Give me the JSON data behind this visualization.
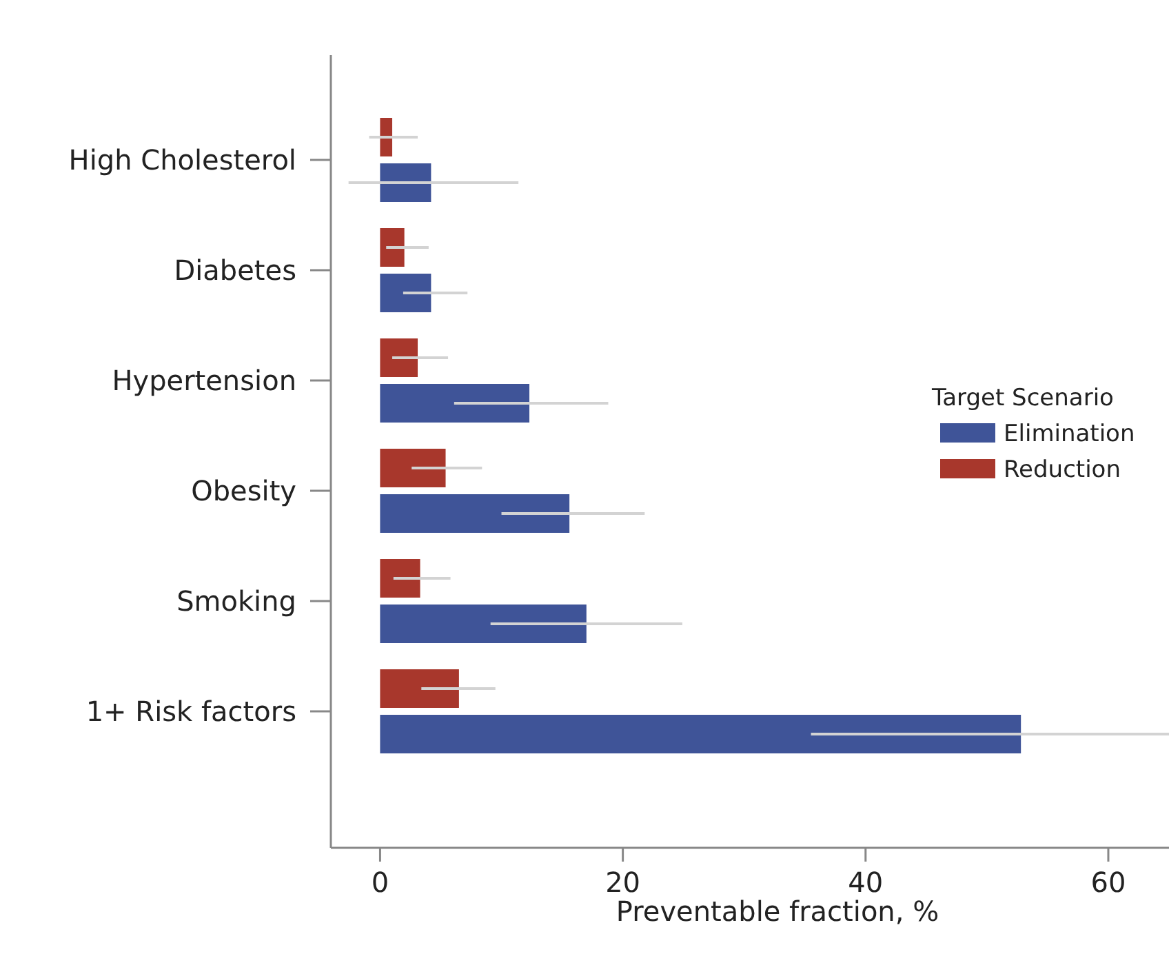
{
  "chart_data": {
    "type": "bar",
    "orientation": "horizontal",
    "xlabel": "Preventable fraction, %",
    "legend_title": "Target Scenario",
    "legend": "right",
    "categories": [
      "High Cholesterol",
      "Diabetes",
      "Hypertension",
      "Obesity",
      "Smoking",
      "1+ Risk factors"
    ],
    "series": [
      {
        "name": "Elimination",
        "color": "#3f5498",
        "values": [
          4.2,
          4.2,
          12.3,
          15.6,
          17.0,
          52.8
        ],
        "errors": [
          [
            -2.6,
            11.4
          ],
          [
            1.9,
            7.2
          ],
          [
            6.1,
            18.8
          ],
          [
            10.0,
            21.8
          ],
          [
            9.1,
            24.9
          ],
          [
            35.5,
            65
          ]
        ]
      },
      {
        "name": "Reduction",
        "color": "#a8372c",
        "values": [
          1.0,
          2.0,
          3.1,
          5.4,
          3.3,
          6.5
        ],
        "errors": [
          [
            -0.9,
            3.1
          ],
          [
            0.5,
            4.0
          ],
          [
            1.0,
            5.6
          ],
          [
            2.6,
            8.4
          ],
          [
            1.1,
            5.8
          ],
          [
            3.4,
            9.5
          ]
        ]
      }
    ],
    "xlim": [
      -4,
      65
    ],
    "xticks": [
      0,
      20,
      40,
      60
    ],
    "grid": false
  }
}
